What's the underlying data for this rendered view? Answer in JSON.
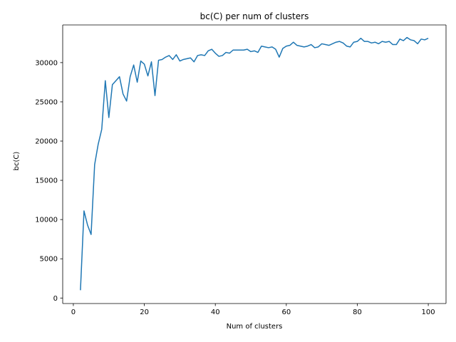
{
  "chart_data": {
    "type": "line",
    "title": "bc(C) per num of clusters",
    "xlabel": "Num of clusters",
    "ylabel": "bc(C)",
    "xlim": [
      -3,
      105
    ],
    "ylim": [
      -700,
      34800
    ],
    "xticks": [
      0,
      20,
      40,
      60,
      80,
      100
    ],
    "yticks": [
      0,
      5000,
      10000,
      15000,
      20000,
      25000,
      30000
    ],
    "grid": false,
    "line_color": "#1f77b4",
    "x": [
      2,
      3,
      4,
      5,
      6,
      7,
      8,
      9,
      10,
      11,
      12,
      13,
      14,
      15,
      16,
      17,
      18,
      19,
      20,
      21,
      22,
      23,
      24,
      25,
      26,
      27,
      28,
      29,
      30,
      31,
      32,
      33,
      34,
      35,
      36,
      37,
      38,
      39,
      40,
      41,
      42,
      43,
      44,
      45,
      46,
      47,
      48,
      49,
      50,
      51,
      52,
      53,
      54,
      55,
      56,
      57,
      58,
      59,
      60,
      61,
      62,
      63,
      64,
      65,
      66,
      67,
      68,
      69,
      70,
      71,
      72,
      73,
      74,
      75,
      76,
      77,
      78,
      79,
      80,
      81,
      82,
      83,
      84,
      85,
      86,
      87,
      88,
      89,
      90,
      91,
      92,
      93,
      94,
      95,
      96,
      97,
      98,
      99,
      100
    ],
    "series": [
      {
        "values": [
          1000,
          11100,
          9300,
          8100,
          17000,
          19600,
          21500,
          27700,
          23000,
          27200,
          27700,
          28200,
          26000,
          25100,
          28200,
          29700,
          27500,
          30200,
          29800,
          28300,
          30100,
          25800,
          30300,
          30400,
          30700,
          30900,
          30400,
          31000,
          30200,
          30400,
          30500,
          30600,
          30100,
          30900,
          31000,
          30900,
          31500,
          31700,
          31200,
          30800,
          30900,
          31300,
          31200,
          31600,
          31600,
          31600,
          31600,
          31700,
          31400,
          31500,
          31300,
          32100,
          32000,
          31900,
          32000,
          31700,
          30700,
          31800,
          32100,
          32200,
          32600,
          32200,
          32100,
          32000,
          32100,
          32300,
          31900,
          32000,
          32400,
          32300,
          32200,
          32400,
          32600,
          32700,
          32500,
          32100,
          32000,
          32600,
          32700,
          33100,
          32700,
          32700,
          32500,
          32600,
          32400,
          32700,
          32600,
          32700,
          32300,
          32300,
          33000,
          32800,
          33200,
          32900,
          32800,
          32400,
          33000,
          32900,
          33100
        ]
      }
    ]
  }
}
